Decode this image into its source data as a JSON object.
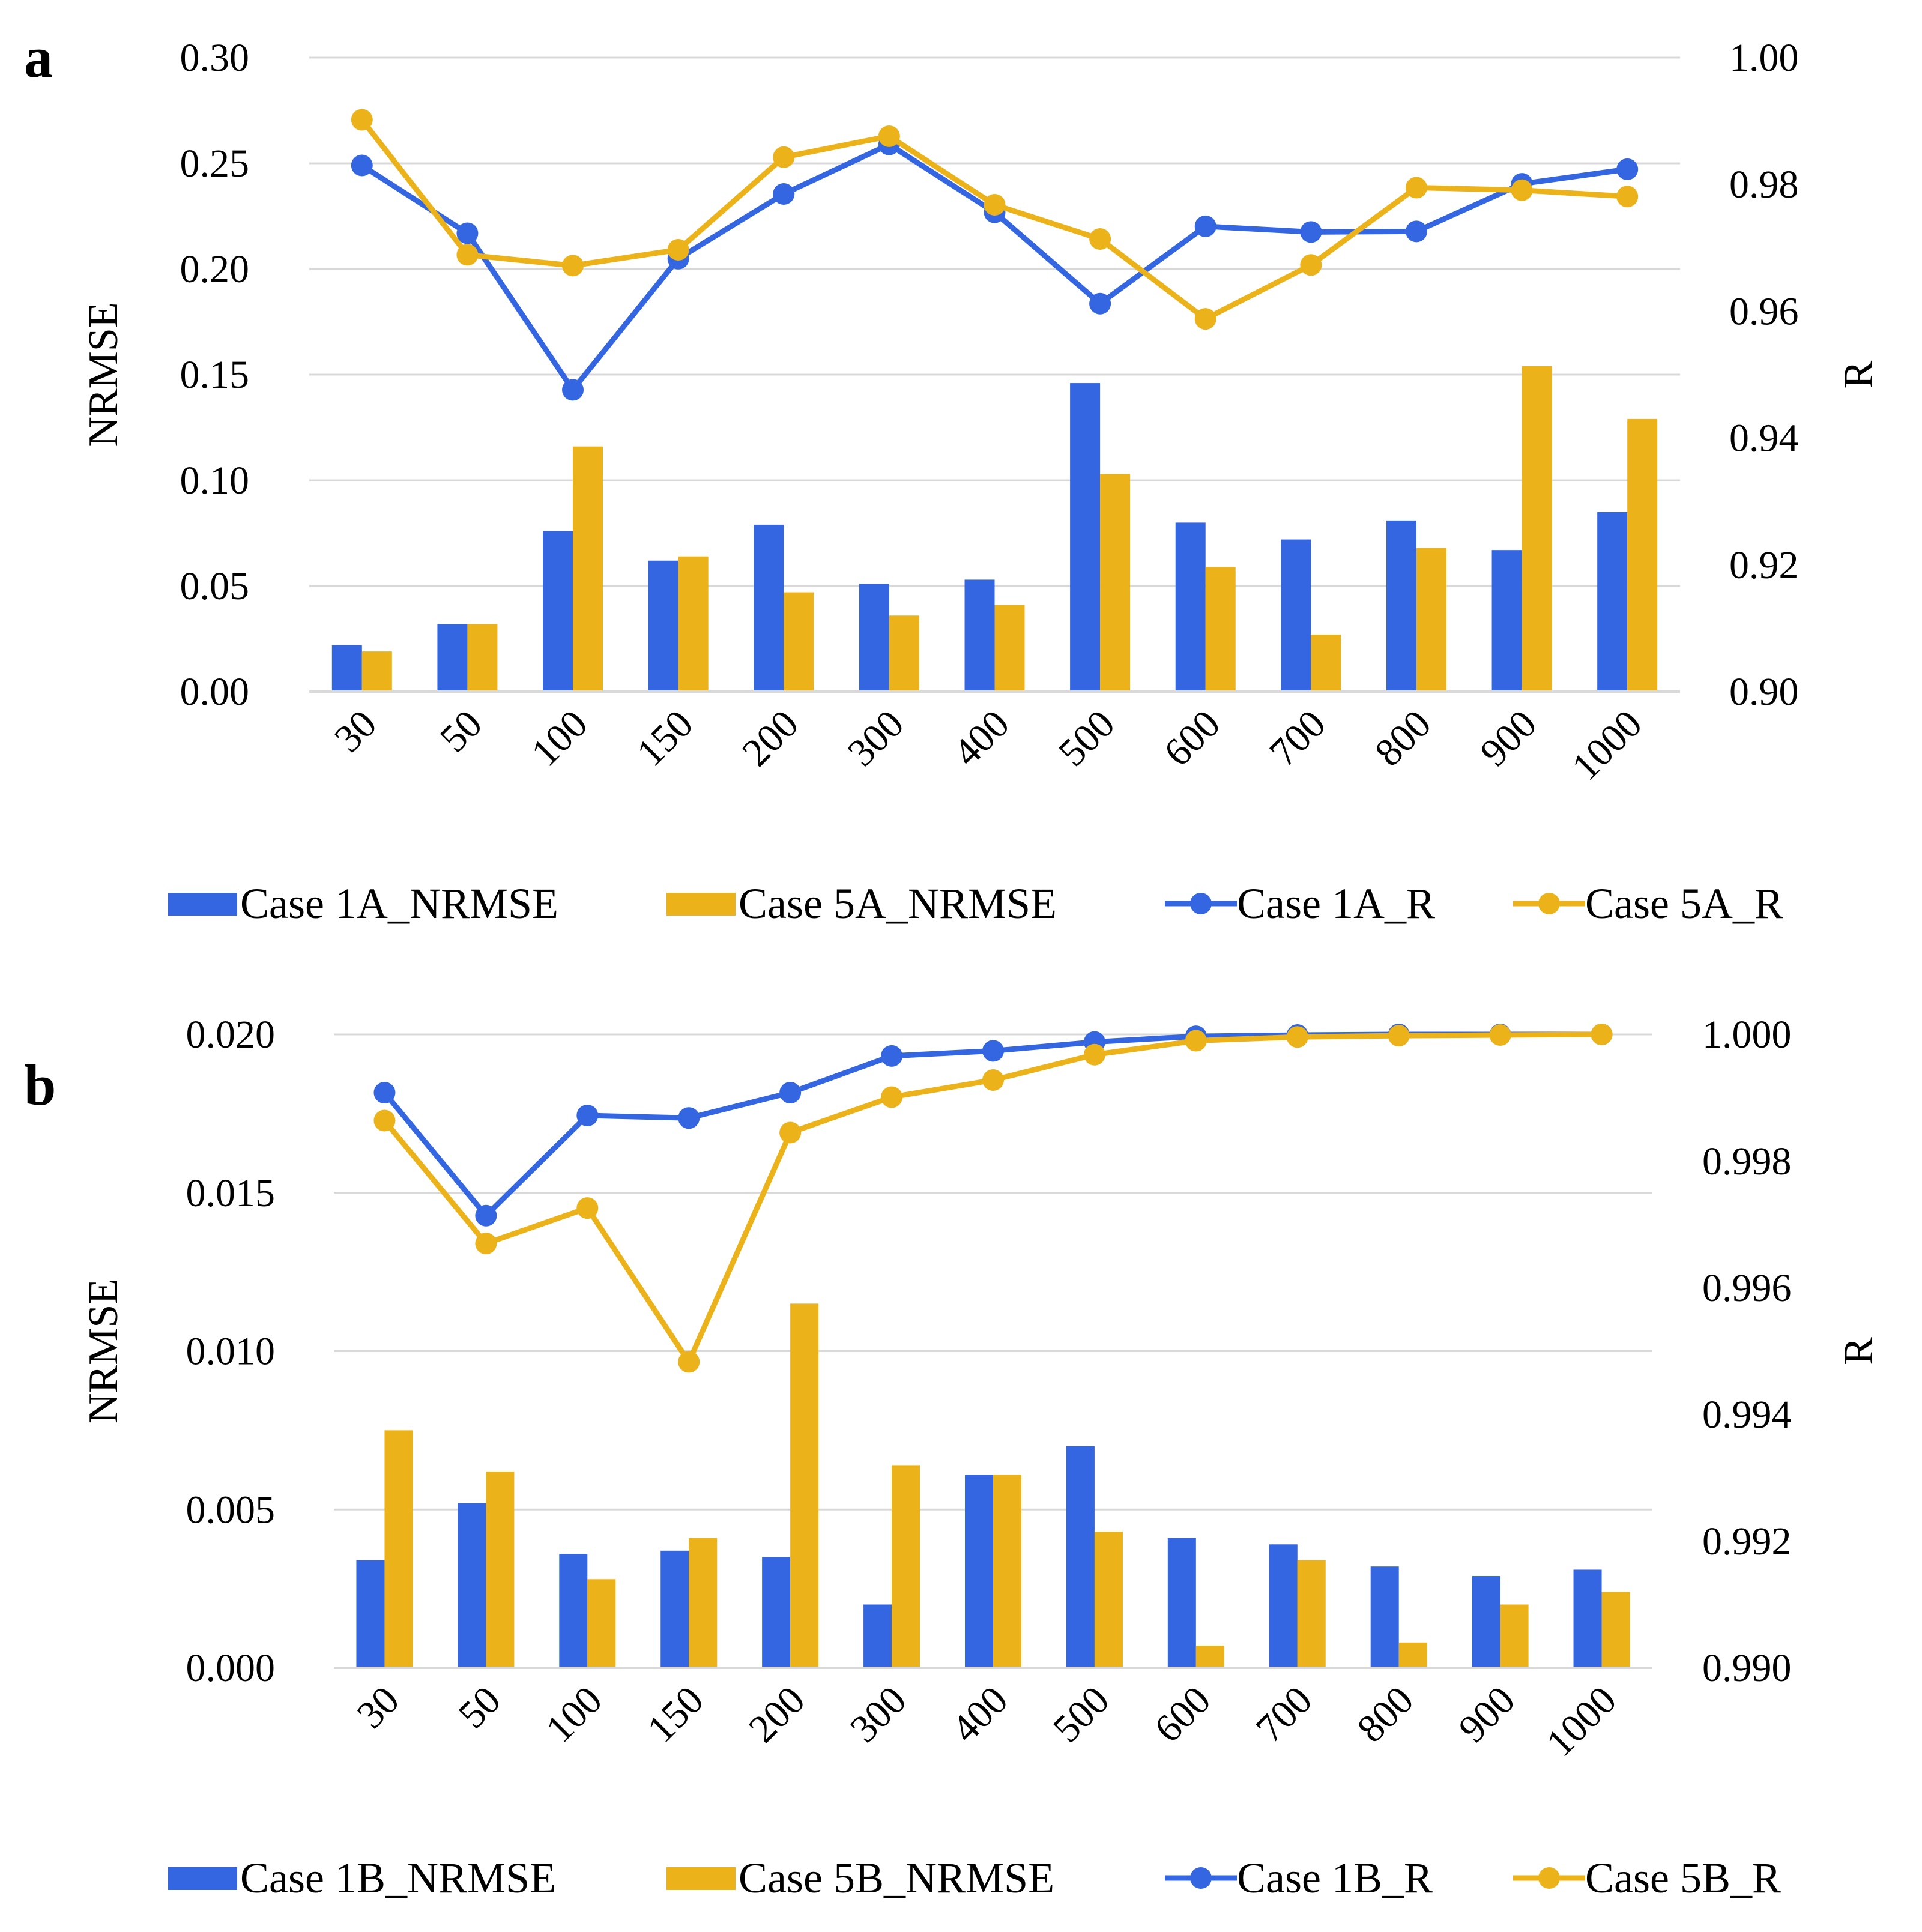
{
  "colors": {
    "blue": "#3366e0",
    "gold": "#ebb21a",
    "grid": "#d9d9d9",
    "text": "#000000"
  },
  "chart_data": [
    {
      "panel_label": "a",
      "type": "bar",
      "categories": [
        "30",
        "50",
        "100",
        "150",
        "200",
        "300",
        "400",
        "500",
        "600",
        "700",
        "800",
        "900",
        "1000"
      ],
      "ylabel": "NRMSE",
      "y2label": "R",
      "ylim": [
        0,
        0.3
      ],
      "yticks": [
        "0.00",
        "0.05",
        "0.10",
        "0.15",
        "0.20",
        "0.25",
        "0.30"
      ],
      "y2lim": [
        0.9,
        1.0
      ],
      "y2ticks": [
        "0.90",
        "0.92",
        "0.94",
        "0.96",
        "0.98",
        "1.00"
      ],
      "grid": true,
      "legend_position": "bottom",
      "series": [
        {
          "name": "Case 1A_NRMSE",
          "kind": "bar",
          "axis": "left",
          "color": "blue",
          "values": [
            0.022,
            0.032,
            0.076,
            0.062,
            0.079,
            0.051,
            0.053,
            0.146,
            0.08,
            0.072,
            0.081,
            0.067,
            0.085
          ]
        },
        {
          "name": "Case 5A_NRMSE",
          "kind": "bar",
          "axis": "left",
          "color": "gold",
          "values": [
            0.019,
            0.032,
            0.116,
            0.064,
            0.047,
            0.036,
            0.041,
            0.103,
            0.059,
            0.027,
            0.068,
            0.154,
            0.129
          ]
        },
        {
          "name": "Case 1A_R",
          "kind": "line",
          "axis": "right",
          "color": "blue",
          "values": [
            0.983,
            0.9723,
            0.9476,
            0.9683,
            0.9785,
            0.9863,
            0.9756,
            0.9612,
            0.9734,
            0.9725,
            0.9726,
            0.9801,
            0.9824
          ]
        },
        {
          "name": "Case 5A_R",
          "kind": "line",
          "axis": "right",
          "color": "gold",
          "values": [
            0.9902,
            0.9689,
            0.9672,
            0.9697,
            0.9843,
            0.9876,
            0.9768,
            0.9714,
            0.9588,
            0.9673,
            0.9795,
            0.9791,
            0.9781
          ]
        }
      ]
    },
    {
      "panel_label": "b",
      "type": "bar",
      "categories": [
        "30",
        "50",
        "100",
        "150",
        "200",
        "300",
        "400",
        "500",
        "600",
        "700",
        "800",
        "900",
        "1000"
      ],
      "ylabel": "NRMSE",
      "y2label": "R",
      "ylim": [
        0,
        0.02
      ],
      "yticks": [
        "0.000",
        "0.005",
        "0.010",
        "0.015",
        "0.020"
      ],
      "y2lim": [
        0.99,
        1.0
      ],
      "y2ticks": [
        "0.990",
        "0.992",
        "0.994",
        "0.996",
        "0.998",
        "1.000"
      ],
      "grid": true,
      "legend_position": "bottom",
      "series": [
        {
          "name": "Case 1B_NRMSE",
          "kind": "bar",
          "axis": "left",
          "color": "blue",
          "values": [
            0.0034,
            0.0052,
            0.0036,
            0.0037,
            0.0035,
            0.002,
            0.0061,
            0.007,
            0.0041,
            0.0039,
            0.0032,
            0.0029,
            0.0031
          ]
        },
        {
          "name": "Case 5B_NRMSE",
          "kind": "bar",
          "axis": "left",
          "color": "gold",
          "values": [
            0.0075,
            0.0062,
            0.0028,
            0.0041,
            0.0115,
            0.0064,
            0.0061,
            0.0043,
            0.0007,
            0.0034,
            0.0008,
            0.002,
            0.0024
          ]
        },
        {
          "name": "Case 1B_R",
          "kind": "line",
          "axis": "right",
          "color": "blue",
          "values": [
            0.99908,
            0.99714,
            0.99872,
            0.99868,
            0.99908,
            0.99966,
            0.99974,
            0.99988,
            0.99997,
            0.99999,
            1.0,
            1.0,
            1.0
          ]
        },
        {
          "name": "Case 5B_R",
          "kind": "line",
          "axis": "right",
          "color": "gold",
          "values": [
            0.99864,
            0.9967,
            0.99726,
            0.99483,
            0.99845,
            0.99901,
            0.99928,
            0.99968,
            0.9999,
            0.99996,
            0.99998,
            0.99999,
            1.0
          ]
        }
      ]
    }
  ]
}
